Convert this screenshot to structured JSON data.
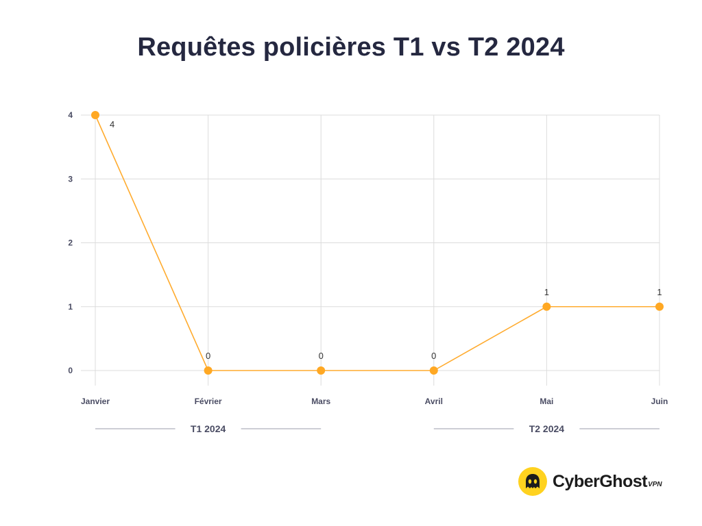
{
  "title": "Requêtes policières T1 vs T2 2024",
  "chart_data": {
    "type": "line",
    "title": "Requêtes policières T1 vs T2 2024",
    "categories": [
      "Janvier",
      "Février",
      "Mars",
      "Avril",
      "Mai",
      "Juin"
    ],
    "values": [
      4,
      0,
      0,
      0,
      1,
      1
    ],
    "data_labels": [
      "4",
      "0",
      "0",
      "0",
      "1",
      "1"
    ],
    "y_ticks": [
      "0",
      "1",
      "2",
      "3",
      "4"
    ],
    "ylim": [
      0,
      4
    ],
    "xlabel": "",
    "ylabel": "",
    "grid": true,
    "groups": [
      {
        "label": "T1 2024",
        "span": [
          "Janvier",
          "Mars"
        ]
      },
      {
        "label": "T2 2024",
        "span": [
          "Avril",
          "Juin"
        ]
      }
    ],
    "colors": {
      "line": "#ffab2e",
      "marker": "#ffa823",
      "grid": "#dcdcdc",
      "axis_text": "#4a4c63"
    }
  },
  "brand": {
    "name": "CyberGhost",
    "suffix": "VPN",
    "logo_icon": "cyberghost-ghost-icon",
    "color": "#ffd21f"
  }
}
